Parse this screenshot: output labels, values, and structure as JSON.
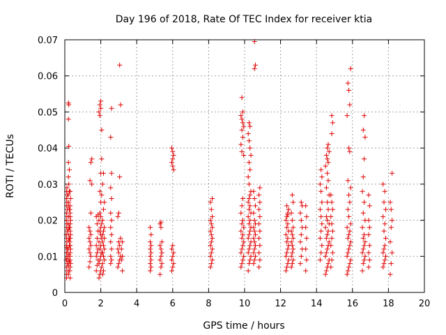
{
  "chart_data": {
    "type": "scatter",
    "title": "Day 196 of 2018, Rate Of TEC Index for receiver ktia",
    "xlabel": "GPS time / hours",
    "ylabel": "ROTI / TECUs",
    "xlim": [
      0,
      20
    ],
    "ylim": [
      0,
      0.07
    ],
    "xticks": [
      0,
      2,
      4,
      6,
      8,
      10,
      12,
      14,
      16,
      18,
      20
    ],
    "yticks": [
      0,
      0.01,
      0.02,
      0.03,
      0.04,
      0.05,
      0.06,
      0.07
    ],
    "xtick_labels": [
      "0",
      "2",
      "4",
      "6",
      "8",
      "10",
      "12",
      "14",
      "16",
      "18",
      "20"
    ],
    "ytick_labels": [
      "0",
      "0.01",
      "0.02",
      "0.03",
      "0.04",
      "0.05",
      "0.06",
      "0.07"
    ],
    "grid": true,
    "marker": "+",
    "series": [
      {
        "name": "ROTI",
        "color": "#e00000",
        "x": [
          0.1,
          0.1,
          0.12,
          0.1,
          0.15,
          0.08,
          0.12,
          0.1,
          0.14,
          0.1,
          0.12,
          0.1,
          0.08,
          0.14,
          0.1,
          0.12,
          0.1,
          0.12,
          0.1,
          0.15,
          0.1,
          0.12,
          0.1,
          0.14,
          0.1,
          0.12,
          0.1,
          0.12,
          0.1,
          0.12,
          0.2,
          0.22,
          0.2,
          0.25,
          0.2,
          0.22,
          0.2,
          0.25,
          0.22,
          0.2,
          0.25,
          0.2,
          0.22,
          0.25,
          0.2,
          0.22,
          0.2,
          0.25,
          0.22,
          0.2,
          0.25,
          0.2,
          0.22,
          0.2,
          0.22,
          0.2,
          0.25,
          0.2,
          0.3,
          0.28,
          0.3,
          0.32,
          0.3,
          0.28,
          0.3,
          0.32,
          0.3,
          0.28,
          0.3,
          0.32,
          0.3,
          0.28,
          0.3,
          0.32,
          0.3,
          0.3,
          0.28,
          0.3,
          0.32,
          0.3,
          1.35,
          1.4,
          1.45,
          1.4,
          1.35,
          1.45,
          1.4,
          1.35,
          1.45,
          1.4,
          1.35,
          1.45,
          1.5,
          1.4,
          1.45,
          1.5,
          1.75,
          1.8,
          1.85,
          1.75,
          1.8,
          1.85,
          1.75,
          1.8,
          1.85,
          1.8,
          1.75,
          1.85,
          1.9,
          1.95,
          2.0,
          2.05,
          1.9,
          1.95,
          2.0,
          2.05,
          1.95,
          2.0,
          1.9,
          2.05,
          2.0,
          1.95,
          2.0,
          2.05,
          1.9,
          2.0,
          1.95,
          2.0,
          2.05,
          1.95,
          2.0,
          2.05,
          1.95,
          1.9,
          2.0,
          1.95,
          2.0,
          2.05,
          2.1,
          2.15,
          2.1,
          2.2,
          2.15,
          2.1,
          2.2,
          2.15,
          2.1,
          2.2,
          2.1,
          2.15,
          2.2,
          2.1,
          2.15,
          2.2,
          2.1,
          2.15,
          2.55,
          2.6,
          2.55,
          2.6,
          2.55,
          2.6,
          2.55,
          2.6,
          2.55,
          2.6,
          2.55,
          2.6,
          2.55,
          2.6,
          2.95,
          3.0,
          3.05,
          3.1,
          3.0,
          2.95,
          3.05,
          3.0,
          3.1,
          2.95,
          3.0,
          3.05,
          3.1,
          3.05,
          3.2,
          3.15,
          3.2,
          3.15,
          3.2,
          4.75,
          4.8,
          4.75,
          4.8,
          4.75,
          4.8,
          4.75,
          4.8,
          4.75,
          4.8,
          4.75,
          5.3,
          5.35,
          5.4,
          5.3,
          5.35,
          5.4,
          5.35,
          5.3,
          5.4,
          5.35,
          5.3,
          5.35,
          5.95,
          6.0,
          6.05,
          5.95,
          6.0,
          6.05,
          5.95,
          6.0,
          6.05,
          6.0,
          5.95,
          6.0,
          6.05,
          6.0,
          5.95,
          8.1,
          8.15,
          8.2,
          8.1,
          8.15,
          8.2,
          8.1,
          8.15,
          8.2,
          8.15,
          8.1,
          8.2,
          8.15,
          8.1,
          8.2,
          8.15,
          8.1,
          8.2,
          9.8,
          9.85,
          9.9,
          9.95,
          9.8,
          9.85,
          9.9,
          9.95,
          9.85,
          9.9,
          9.8,
          9.95,
          9.85,
          9.9,
          9.8,
          9.85,
          9.9,
          9.95,
          9.85,
          9.8,
          9.9,
          9.85,
          9.95,
          9.9,
          9.85,
          9.8,
          9.9,
          9.85,
          10.2,
          10.25,
          10.3,
          10.35,
          10.2,
          10.25,
          10.3,
          10.35,
          10.2,
          10.25,
          10.3,
          10.35,
          10.25,
          10.3,
          10.2,
          10.35,
          10.25,
          10.3,
          10.2,
          10.25,
          10.3,
          10.35,
          10.25,
          10.2,
          10.3,
          10.25,
          10.35,
          10.3,
          10.25,
          10.2,
          10.3,
          10.25,
          10.5,
          10.55,
          10.6,
          10.5,
          10.55,
          10.6,
          10.55,
          10.5,
          10.6,
          10.55,
          10.5,
          10.6,
          10.55,
          10.5,
          10.6,
          10.55,
          10.5,
          10.55,
          10.6,
          10.55,
          10.8,
          10.85,
          10.8,
          10.85,
          10.8,
          10.85,
          10.8,
          10.85,
          10.8,
          10.85,
          10.8,
          10.85,
          12.3,
          12.35,
          12.4,
          12.45,
          12.3,
          12.35,
          12.4,
          12.45,
          12.35,
          12.4,
          12.3,
          12.45,
          12.35,
          12.4,
          12.3,
          12.35,
          12.4,
          12.45,
          12.35,
          12.4,
          12.6,
          12.65,
          12.7,
          12.6,
          12.65,
          12.7,
          12.65,
          12.6,
          12.7,
          12.65,
          12.6,
          12.7,
          12.65,
          12.6,
          12.7,
          12.65,
          13.1,
          13.15,
          13.2,
          13.1,
          13.15,
          13.2,
          13.15,
          13.1,
          13.2,
          13.15,
          13.4,
          13.45,
          13.4,
          13.45,
          13.4,
          13.45,
          13.4,
          14.2,
          14.25,
          14.3,
          14.2,
          14.25,
          14.3,
          14.25,
          14.2,
          14.3,
          14.25,
          14.2,
          14.3,
          14.25,
          14.5,
          14.55,
          14.6,
          14.65,
          14.7,
          14.5,
          14.55,
          14.6,
          14.65,
          14.7,
          14.55,
          14.6,
          14.65,
          14.5,
          14.7,
          14.6,
          14.55,
          14.65,
          14.6,
          14.7,
          14.55,
          14.65,
          14.6,
          14.5,
          14.65,
          14.6,
          14.55,
          14.7,
          14.6,
          14.65,
          14.8,
          14.85,
          14.9,
          14.8,
          14.85,
          14.9,
          14.85,
          14.8,
          14.9,
          14.85,
          14.8,
          14.85,
          14.9,
          14.85,
          15.7,
          15.75,
          15.8,
          15.85,
          15.9,
          15.7,
          15.75,
          15.8,
          15.85,
          15.9,
          15.75,
          15.8,
          15.85,
          15.7,
          15.9,
          15.8,
          15.75,
          15.85,
          15.8,
          15.9,
          15.75,
          15.85,
          15.8,
          15.7,
          15.85,
          15.8,
          15.75,
          15.9,
          16.55,
          16.6,
          16.65,
          16.7,
          16.55,
          16.6,
          16.65,
          16.7,
          16.6,
          16.65,
          16.55,
          16.7,
          16.6,
          16.65,
          16.55,
          16.6,
          16.65,
          16.7,
          16.6,
          16.65,
          16.9,
          16.95,
          16.9,
          16.95,
          16.9,
          16.95,
          16.9,
          16.95,
          16.9,
          17.7,
          17.75,
          17.8,
          17.85,
          17.7,
          17.75,
          17.8,
          17.85,
          17.75,
          17.8,
          17.7,
          17.85,
          17.75,
          17.8,
          17.7,
          18.1,
          18.15,
          18.2,
          18.1,
          18.15,
          18.2,
          18.15,
          18.1,
          18.2
        ],
        "y": [
          0.004,
          0.005,
          0.006,
          0.007,
          0.008,
          0.009,
          0.01,
          0.011,
          0.012,
          0.013,
          0.014,
          0.015,
          0.016,
          0.017,
          0.018,
          0.019,
          0.02,
          0.021,
          0.022,
          0.023,
          0.024,
          0.025,
          0.026,
          0.027,
          0.028,
          0.029,
          0.009,
          0.011,
          0.0125,
          0.0095,
          0.005,
          0.006,
          0.0075,
          0.0085,
          0.009,
          0.0105,
          0.012,
          0.013,
          0.0145,
          0.016,
          0.018,
          0.019,
          0.021,
          0.023,
          0.024,
          0.025,
          0.027,
          0.028,
          0.03,
          0.032,
          0.034,
          0.036,
          0.0405,
          0.048,
          0.052,
          0.0525,
          0.015,
          0.0175,
          0.004,
          0.006,
          0.007,
          0.008,
          0.009,
          0.01,
          0.011,
          0.012,
          0.013,
          0.014,
          0.015,
          0.016,
          0.017,
          0.018,
          0.019,
          0.02,
          0.021,
          0.022,
          0.023,
          0.024,
          0.026,
          0.028,
          0.007,
          0.0085,
          0.01,
          0.011,
          0.012,
          0.013,
          0.014,
          0.015,
          0.016,
          0.017,
          0.018,
          0.022,
          0.03,
          0.031,
          0.036,
          0.037,
          0.006,
          0.0075,
          0.009,
          0.01,
          0.011,
          0.012,
          0.013,
          0.015,
          0.017,
          0.019,
          0.021,
          0.0215,
          0.004,
          0.005,
          0.006,
          0.007,
          0.008,
          0.009,
          0.01,
          0.011,
          0.012,
          0.013,
          0.014,
          0.015,
          0.016,
          0.017,
          0.018,
          0.019,
          0.02,
          0.021,
          0.022,
          0.025,
          0.027,
          0.028,
          0.033,
          0.037,
          0.049,
          0.05,
          0.051,
          0.052,
          0.053,
          0.045,
          0.005,
          0.006,
          0.008,
          0.009,
          0.01,
          0.011,
          0.012,
          0.013,
          0.014,
          0.015,
          0.016,
          0.017,
          0.018,
          0.02,
          0.023,
          0.025,
          0.03,
          0.033,
          0.008,
          0.009,
          0.01,
          0.012,
          0.014,
          0.016,
          0.018,
          0.02,
          0.022,
          0.026,
          0.029,
          0.033,
          0.043,
          0.051,
          0.007,
          0.008,
          0.009,
          0.01,
          0.011,
          0.012,
          0.013,
          0.014,
          0.015,
          0.021,
          0.022,
          0.032,
          0.052,
          0.063,
          0.006,
          0.009,
          0.01,
          0.012,
          0.014,
          0.006,
          0.007,
          0.008,
          0.009,
          0.01,
          0.011,
          0.012,
          0.013,
          0.014,
          0.016,
          0.018,
          0.005,
          0.007,
          0.008,
          0.009,
          0.01,
          0.011,
          0.012,
          0.013,
          0.014,
          0.018,
          0.019,
          0.0195,
          0.006,
          0.007,
          0.008,
          0.009,
          0.01,
          0.011,
          0.012,
          0.013,
          0.034,
          0.035,
          0.036,
          0.037,
          0.038,
          0.039,
          0.04,
          0.007,
          0.008,
          0.009,
          0.01,
          0.011,
          0.012,
          0.013,
          0.014,
          0.015,
          0.016,
          0.017,
          0.018,
          0.019,
          0.02,
          0.021,
          0.023,
          0.025,
          0.026,
          0.007,
          0.008,
          0.009,
          0.01,
          0.011,
          0.012,
          0.013,
          0.014,
          0.015,
          0.016,
          0.017,
          0.018,
          0.019,
          0.02,
          0.022,
          0.024,
          0.026,
          0.038,
          0.039,
          0.041,
          0.043,
          0.045,
          0.046,
          0.047,
          0.048,
          0.049,
          0.05,
          0.054,
          0.006,
          0.008,
          0.009,
          0.01,
          0.011,
          0.012,
          0.013,
          0.014,
          0.015,
          0.016,
          0.017,
          0.018,
          0.019,
          0.02,
          0.021,
          0.022,
          0.023,
          0.024,
          0.025,
          0.026,
          0.027,
          0.028,
          0.03,
          0.032,
          0.034,
          0.036,
          0.038,
          0.04,
          0.042,
          0.044,
          0.046,
          0.047,
          0.008,
          0.009,
          0.01,
          0.011,
          0.012,
          0.013,
          0.014,
          0.015,
          0.016,
          0.017,
          0.018,
          0.019,
          0.02,
          0.022,
          0.024,
          0.026,
          0.028,
          0.062,
          0.063,
          0.0695,
          0.007,
          0.009,
          0.011,
          0.013,
          0.015,
          0.017,
          0.019,
          0.021,
          0.023,
          0.025,
          0.027,
          0.029,
          0.006,
          0.007,
          0.008,
          0.009,
          0.01,
          0.011,
          0.012,
          0.013,
          0.014,
          0.015,
          0.016,
          0.017,
          0.018,
          0.019,
          0.02,
          0.021,
          0.022,
          0.023,
          0.024,
          0.0215,
          0.007,
          0.008,
          0.009,
          0.01,
          0.011,
          0.012,
          0.013,
          0.014,
          0.015,
          0.016,
          0.017,
          0.018,
          0.02,
          0.022,
          0.025,
          0.027,
          0.008,
          0.01,
          0.012,
          0.014,
          0.016,
          0.018,
          0.02,
          0.022,
          0.024,
          0.025,
          0.006,
          0.009,
          0.012,
          0.015,
          0.018,
          0.021,
          0.024,
          0.009,
          0.011,
          0.013,
          0.015,
          0.017,
          0.019,
          0.021,
          0.023,
          0.025,
          0.028,
          0.03,
          0.032,
          0.034,
          0.005,
          0.006,
          0.007,
          0.008,
          0.009,
          0.01,
          0.011,
          0.012,
          0.013,
          0.014,
          0.015,
          0.016,
          0.017,
          0.018,
          0.019,
          0.02,
          0.021,
          0.023,
          0.025,
          0.027,
          0.029,
          0.031,
          0.033,
          0.035,
          0.036,
          0.037,
          0.038,
          0.039,
          0.04,
          0.041,
          0.007,
          0.009,
          0.011,
          0.013,
          0.015,
          0.017,
          0.019,
          0.021,
          0.023,
          0.025,
          0.027,
          0.044,
          0.047,
          0.049,
          0.005,
          0.006,
          0.007,
          0.008,
          0.009,
          0.01,
          0.011,
          0.012,
          0.013,
          0.014,
          0.015,
          0.016,
          0.017,
          0.018,
          0.019,
          0.021,
          0.023,
          0.025,
          0.027,
          0.029,
          0.031,
          0.039,
          0.04,
          0.049,
          0.052,
          0.056,
          0.058,
          0.062,
          0.006,
          0.008,
          0.009,
          0.01,
          0.011,
          0.012,
          0.013,
          0.014,
          0.015,
          0.016,
          0.018,
          0.02,
          0.022,
          0.025,
          0.028,
          0.032,
          0.037,
          0.043,
          0.045,
          0.049,
          0.007,
          0.009,
          0.011,
          0.013,
          0.016,
          0.018,
          0.02,
          0.024,
          0.027,
          0.007,
          0.008,
          0.009,
          0.01,
          0.011,
          0.012,
          0.013,
          0.015,
          0.017,
          0.019,
          0.021,
          0.023,
          0.025,
          0.028,
          0.03,
          0.005,
          0.008,
          0.011,
          0.014,
          0.018,
          0.02,
          0.023,
          0.025,
          0.033
        ]
      }
    ]
  }
}
